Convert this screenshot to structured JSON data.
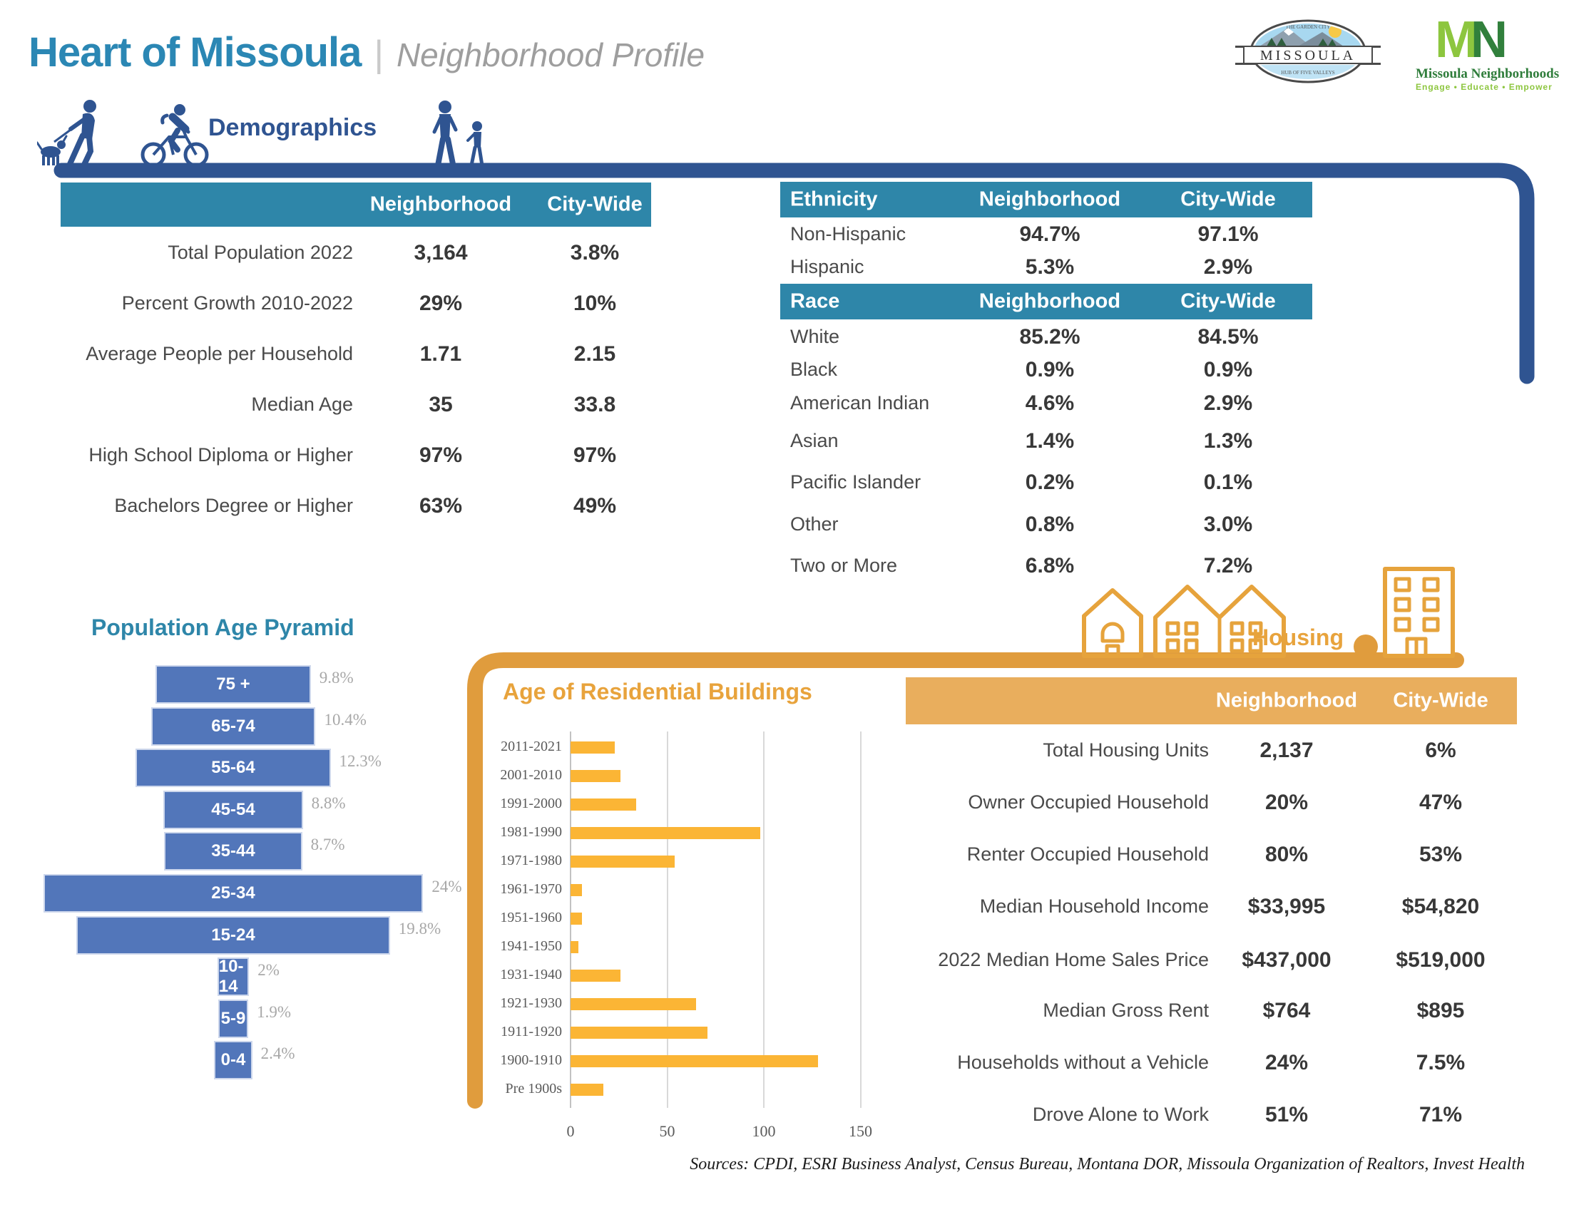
{
  "page": {
    "title": "Heart of Missoula",
    "subtitle": "Neighborhood Profile",
    "separator": "|",
    "sources": "Sources: CPDI, ESRI Business Analyst, Census Bureau, Montana DOR, Missoula Organization of Realtors, Invest Health"
  },
  "logos": {
    "city": {
      "name": "MISSOULA",
      "arc_top": "THE GARDEN CITY",
      "arc_bottom": "HUB OF FIVE VALLEYS"
    },
    "mn": {
      "m": "M",
      "n": "N",
      "name": "Missoula Neighborhoods",
      "tagline": "Engage • Educate • Empower"
    }
  },
  "sections": {
    "demographics": "Demographics",
    "housing": "Housing"
  },
  "colors": {
    "navy": "#2F5491",
    "teal_header": "#2E86A9",
    "title_teal": "#2b87b4",
    "pyramid_blue": "#5276BA",
    "chart_yellow": "#FBB535",
    "orange_frame": "#E09C3D",
    "orange_header": "#E9AE5D",
    "orange_text": "#E8A33C"
  },
  "demographics_table": {
    "columns": [
      "Neighborhood",
      "City-Wide"
    ],
    "rows": [
      {
        "label": "Total Population 2022",
        "neighborhood": "3,164",
        "citywide": "3.8%"
      },
      {
        "label": "Percent Growth 2010-2022",
        "neighborhood": "29%",
        "citywide": "10%"
      },
      {
        "label": "Average People per Household",
        "neighborhood": "1.71",
        "citywide": "2.15"
      },
      {
        "label": "Median Age",
        "neighborhood": "35",
        "citywide": "33.8"
      },
      {
        "label": "High School Diploma or Higher",
        "neighborhood": "97%",
        "citywide": "97%"
      },
      {
        "label": "Bachelors Degree or Higher",
        "neighborhood": "63%",
        "citywide": "49%"
      }
    ]
  },
  "ethnicity_table": {
    "header": "Ethnicity",
    "columns": [
      "Neighborhood",
      "City-Wide"
    ],
    "rows": [
      {
        "label": "Non-Hispanic",
        "neighborhood": "94.7%",
        "citywide": "97.1%"
      },
      {
        "label": "Hispanic",
        "neighborhood": "5.3%",
        "citywide": "2.9%"
      }
    ]
  },
  "race_table": {
    "header": "Race",
    "columns": [
      "Neighborhood",
      "City-Wide"
    ],
    "rows": [
      {
        "label": "White",
        "neighborhood": "85.2%",
        "citywide": "84.5%"
      },
      {
        "label": "Black",
        "neighborhood": "0.9%",
        "citywide": "0.9%"
      },
      {
        "label": "American Indian",
        "neighborhood": "4.6%",
        "citywide": "2.9%"
      },
      {
        "label": "Asian",
        "neighborhood": "1.4%",
        "citywide": "1.3%"
      },
      {
        "label": "Pacific Islander",
        "neighborhood": "0.2%",
        "citywide": "0.1%"
      },
      {
        "label": "Other",
        "neighborhood": "0.8%",
        "citywide": "3.0%"
      },
      {
        "label": "Two or More",
        "neighborhood": "6.8%",
        "citywide": "7.2%"
      }
    ]
  },
  "age_pyramid": {
    "title": "Population Age Pyramid",
    "rows": [
      {
        "group": "75 +",
        "pct": 9.8,
        "pct_label": "9.8%"
      },
      {
        "group": "65-74",
        "pct": 10.4,
        "pct_label": "10.4%"
      },
      {
        "group": "55-64",
        "pct": 12.3,
        "pct_label": "12.3%"
      },
      {
        "group": "45-54",
        "pct": 8.8,
        "pct_label": "8.8%"
      },
      {
        "group": "35-44",
        "pct": 8.7,
        "pct_label": "8.7%"
      },
      {
        "group": "25-34",
        "pct": 24,
        "pct_label": "24%"
      },
      {
        "group": "15-24",
        "pct": 19.8,
        "pct_label": "19.8%"
      },
      {
        "group": "10-14",
        "pct": 2,
        "pct_label": "2%"
      },
      {
        "group": "5-9",
        "pct": 1.9,
        "pct_label": "1.9%"
      },
      {
        "group": "0-4",
        "pct": 2.4,
        "pct_label": "2.4%"
      }
    ]
  },
  "buildings_chart": {
    "title": "Age of Residential Buildings",
    "x_ticks": [
      0,
      50,
      100,
      150
    ],
    "x_tick_labels": [
      "0",
      "50",
      "100",
      "150"
    ],
    "rows": [
      {
        "label": "2011-2021",
        "value": 23
      },
      {
        "label": "2001-2010",
        "value": 26
      },
      {
        "label": "1991-2000",
        "value": 34
      },
      {
        "label": "1981-1990",
        "value": 98
      },
      {
        "label": "1971-1980",
        "value": 54
      },
      {
        "label": "1961-1970",
        "value": 6
      },
      {
        "label": "1951-1960",
        "value": 6
      },
      {
        "label": "1941-1950",
        "value": 4
      },
      {
        "label": "1931-1940",
        "value": 26
      },
      {
        "label": "1921-1930",
        "value": 65
      },
      {
        "label": "1911-1920",
        "value": 71
      },
      {
        "label": "1900-1910",
        "value": 128
      },
      {
        "label": "Pre 1900s",
        "value": 17
      }
    ]
  },
  "housing_table": {
    "columns": [
      "Neighborhood",
      "City-Wide"
    ],
    "rows": [
      {
        "label": "Total Housing Units",
        "neighborhood": "2,137",
        "citywide": "6%"
      },
      {
        "label": "Owner Occupied Household",
        "neighborhood": "20%",
        "citywide": "47%"
      },
      {
        "label": "Renter Occupied Household",
        "neighborhood": "80%",
        "citywide": "53%"
      },
      {
        "label": "Median Household Income",
        "neighborhood": "$33,995",
        "citywide": "$54,820"
      },
      {
        "label": "2022 Median Home Sales Price",
        "neighborhood": "$437,000",
        "citywide": "$519,000"
      },
      {
        "label": "Median Gross Rent",
        "neighborhood": "$764",
        "citywide": "$895"
      },
      {
        "label": "Households without a Vehicle",
        "neighborhood": "24%",
        "citywide": "7.5%"
      },
      {
        "label": "Drove Alone to Work",
        "neighborhood": "51%",
        "citywide": "71%"
      }
    ]
  },
  "chart_data": [
    {
      "type": "bar",
      "title": "Population Age Pyramid",
      "orientation": "horizontal-centered",
      "categories": [
        "75 +",
        "65-74",
        "55-64",
        "45-54",
        "35-44",
        "25-34",
        "15-24",
        "10-14",
        "5-9",
        "0-4"
      ],
      "values": [
        9.8,
        10.4,
        12.3,
        8.8,
        8.7,
        24,
        19.8,
        2,
        1.9,
        2.4
      ],
      "unit": "%",
      "grid": false,
      "legend": "none"
    },
    {
      "type": "bar",
      "title": "Age of Residential Buildings",
      "orientation": "horizontal",
      "categories": [
        "2011-2021",
        "2001-2010",
        "1991-2000",
        "1981-1990",
        "1971-1980",
        "1961-1970",
        "1951-1960",
        "1941-1950",
        "1931-1940",
        "1921-1930",
        "1911-1920",
        "1900-1910",
        "Pre 1900s"
      ],
      "values": [
        23,
        26,
        34,
        98,
        54,
        6,
        6,
        4,
        26,
        65,
        71,
        128,
        17
      ],
      "xlabel": "",
      "ylabel": "",
      "xlim": [
        0,
        160
      ],
      "x_ticks": [
        0,
        50,
        100,
        150
      ],
      "grid": true,
      "legend": "none"
    }
  ]
}
